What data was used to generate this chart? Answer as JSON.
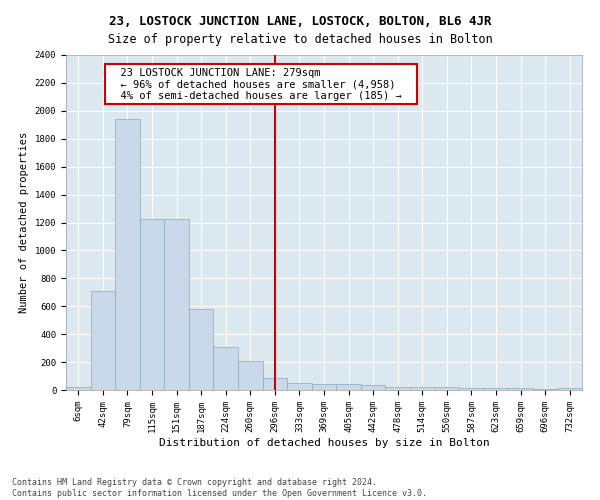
{
  "title": "23, LOSTOCK JUNCTION LANE, LOSTOCK, BOLTON, BL6 4JR",
  "subtitle": "Size of property relative to detached houses in Bolton",
  "xlabel": "Distribution of detached houses by size in Bolton",
  "ylabel": "Number of detached properties",
  "bar_color": "#c9d9ea",
  "bar_edge_color": "#8aaabb",
  "background_color": "#dce8f0",
  "grid_color": "#ffffff",
  "fig_background": "#ffffff",
  "bin_labels": [
    "6sqm",
    "42sqm",
    "79sqm",
    "115sqm",
    "151sqm",
    "187sqm",
    "224sqm",
    "260sqm",
    "296sqm",
    "333sqm",
    "369sqm",
    "405sqm",
    "442sqm",
    "478sqm",
    "514sqm",
    "550sqm",
    "587sqm",
    "623sqm",
    "659sqm",
    "696sqm",
    "732sqm"
  ],
  "bar_heights": [
    18,
    710,
    1940,
    1225,
    1225,
    580,
    310,
    205,
    85,
    50,
    45,
    40,
    35,
    25,
    25,
    20,
    15,
    15,
    12,
    10,
    15
  ],
  "vline_x": 8.0,
  "vline_color": "#cc0000",
  "annotation_text": "  23 LOSTOCK JUNCTION LANE: 279sqm  \n  ← 96% of detached houses are smaller (4,958)  \n  4% of semi-detached houses are larger (185) →  ",
  "annotation_box_color": "#ffffff",
  "annotation_box_edge": "#cc0000",
  "ylim": [
    0,
    2400
  ],
  "yticks": [
    0,
    200,
    400,
    600,
    800,
    1000,
    1200,
    1400,
    1600,
    1800,
    2000,
    2200,
    2400
  ],
  "footnote": "Contains HM Land Registry data © Crown copyright and database right 2024.\nContains public sector information licensed under the Open Government Licence v3.0.",
  "title_fontsize": 9,
  "subtitle_fontsize": 8.5,
  "tick_fontsize": 6.5,
  "ylabel_fontsize": 7.5,
  "xlabel_fontsize": 8,
  "annotation_fontsize": 7.5,
  "footnote_fontsize": 6
}
